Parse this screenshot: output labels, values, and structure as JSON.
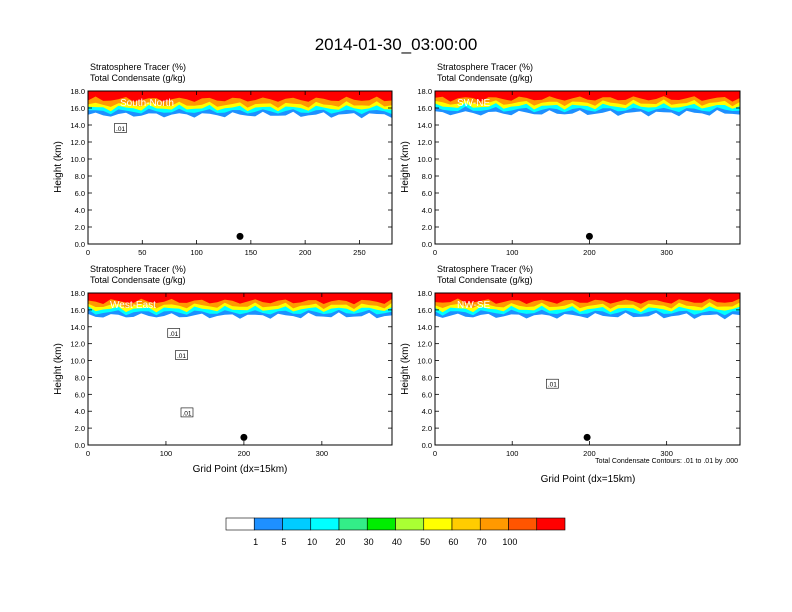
{
  "title": "2014-01-30_03:00:00",
  "footnote": "Total Condensate Contours: .01 to .01 by .000",
  "colorbar": {
    "colors": [
      "#ffffff",
      "#1e90ff",
      "#00ccff",
      "#00ffff",
      "#33ee88",
      "#00ee00",
      "#aaff33",
      "#ffff00",
      "#ffcc00",
      "#ff9900",
      "#ff5500",
      "#ff0000"
    ],
    "labels": [
      "1",
      "5",
      "10",
      "20",
      "30",
      "40",
      "50",
      "60",
      "70",
      "100"
    ]
  },
  "chart_data": [
    {
      "type": "heatmap",
      "header_line1": "Stratosphere Tracer   (%)",
      "header_line2": "Total Condensate   (g/kg)",
      "section_label": "South-North",
      "ylabel": "Height (km)",
      "xlabel": "",
      "xlim": [
        0,
        280
      ],
      "ylim": [
        0,
        18
      ],
      "xticks": [
        "0",
        "50",
        "100",
        "150",
        "200",
        "250"
      ],
      "yticks": [
        "0.0",
        "2.0",
        "4.0",
        "6.0",
        "8.0",
        "10.0",
        "12.0",
        "14.0",
        "16.0",
        "18.0"
      ],
      "contour_labels": [
        {
          "text": ".01",
          "x": 30,
          "y": 13.6
        }
      ],
      "marker_x": 140,
      "tracer_layers": [
        {
          "level": "blue",
          "base_km": 15.2
        },
        {
          "level": "cyan",
          "base_km": 15.6
        },
        {
          "level": "yellow",
          "base_km": 16.0
        },
        {
          "level": "orange",
          "base_km": 16.4
        },
        {
          "level": "red",
          "base_km": 17.0
        }
      ]
    },
    {
      "type": "heatmap",
      "header_line1": "Stratosphere Tracer   (%)",
      "header_line2": "Total Condensate   (g/kg)",
      "section_label": "SW-NE",
      "ylabel": "Height (km)",
      "xlabel": "",
      "xlim": [
        0,
        395
      ],
      "ylim": [
        0,
        18
      ],
      "xticks": [
        "0",
        "100",
        "200",
        "300"
      ],
      "yticks": [
        "0.0",
        "2.0",
        "4.0",
        "6.0",
        "8.0",
        "10.0",
        "12.0",
        "14.0",
        "16.0",
        "18.0"
      ],
      "contour_labels": [],
      "marker_x": 200,
      "tracer_layers": [
        {
          "level": "blue",
          "base_km": 15.4
        },
        {
          "level": "cyan",
          "base_km": 15.8
        },
        {
          "level": "yellow",
          "base_km": 16.2
        },
        {
          "level": "orange",
          "base_km": 16.6
        },
        {
          "level": "red",
          "base_km": 17.1
        }
      ]
    },
    {
      "type": "heatmap",
      "header_line1": "Stratosphere Tracer   (%)",
      "header_line2": "Total Condensate   (g/kg)",
      "section_label": "West-East",
      "ylabel": "Height (km)",
      "xlabel": "Grid Point (dx=15km)",
      "xlim": [
        0,
        390
      ],
      "ylim": [
        0,
        18
      ],
      "xticks": [
        "0",
        "100",
        "200",
        "300"
      ],
      "yticks": [
        "0.0",
        "2.0",
        "4.0",
        "6.0",
        "8.0",
        "10.0",
        "12.0",
        "14.0",
        "16.0",
        "18.0"
      ],
      "contour_labels": [
        {
          "text": ".01",
          "x": 110,
          "y": 13.2
        },
        {
          "text": ".01",
          "x": 120,
          "y": 10.6
        },
        {
          "text": ".01",
          "x": 127,
          "y": 3.8
        }
      ],
      "marker_x": 200,
      "tracer_layers": [
        {
          "level": "blue",
          "base_km": 15.3
        },
        {
          "level": "cyan",
          "base_km": 15.7
        },
        {
          "level": "yellow",
          "base_km": 16.1
        },
        {
          "level": "orange",
          "base_km": 16.5
        },
        {
          "level": "red",
          "base_km": 17.0
        }
      ]
    },
    {
      "type": "heatmap",
      "header_line1": "Stratosphere Tracer   (%)",
      "header_line2": "Total Condensate   (g/kg)",
      "section_label": "NW-SE",
      "ylabel": "Height (km)",
      "xlabel": "Grid Point (dx=15km)",
      "xlim": [
        0,
        395
      ],
      "ylim": [
        0,
        18
      ],
      "xticks": [
        "0",
        "100",
        "200",
        "300"
      ],
      "yticks": [
        "0.0",
        "2.0",
        "4.0",
        "6.0",
        "8.0",
        "10.0",
        "12.0",
        "14.0",
        "16.0",
        "18.0"
      ],
      "contour_labels": [
        {
          "text": ".01",
          "x": 152,
          "y": 7.2
        }
      ],
      "marker_x": 197,
      "tracer_layers": [
        {
          "level": "blue",
          "base_km": 15.3
        },
        {
          "level": "cyan",
          "base_km": 15.7
        },
        {
          "level": "yellow",
          "base_km": 16.1
        },
        {
          "level": "orange",
          "base_km": 16.5
        },
        {
          "level": "red",
          "base_km": 17.0
        }
      ]
    }
  ]
}
